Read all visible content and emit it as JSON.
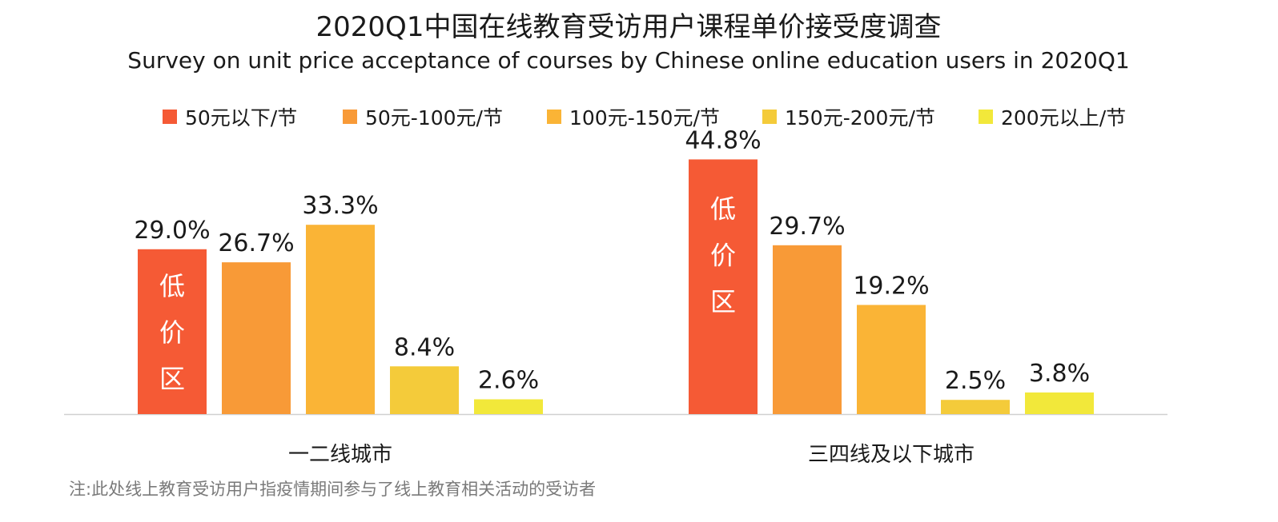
{
  "title": "2020Q1中国在线教育受访用户课程单价接受度调查",
  "subtitle": "Survey on unit price acceptance of courses by Chinese online education users in 2020Q1",
  "note": "注:此处线上教育受访用户指疫情期间参与了线上教育相关活动的受访者",
  "chart_data": {
    "type": "bar",
    "categories": [
      "一二线城市",
      "三四线及以下城市"
    ],
    "series": [
      {
        "name": "50元以下/节",
        "color": "#F55A35",
        "values": [
          29.0,
          44.8
        ],
        "labels": [
          "29.0%",
          "44.8%"
        ]
      },
      {
        "name": "50元-100元/节",
        "color": "#F89A37",
        "values": [
          26.7,
          29.7
        ],
        "labels": [
          "26.7%",
          "29.7%"
        ]
      },
      {
        "name": "100元-150元/节",
        "color": "#FAB436",
        "values": [
          33.3,
          19.2
        ],
        "labels": [
          "33.3%",
          "19.2%"
        ]
      },
      {
        "name": "150元-200元/节",
        "color": "#F4CB3A",
        "values": [
          8.4,
          2.5
        ],
        "labels": [
          "8.4%",
          "2.5%"
        ]
      },
      {
        "name": "200元以上/节",
        "color": "#F2E83A",
        "values": [
          2.6,
          3.8
        ],
        "labels": [
          "2.6%",
          "3.8%"
        ]
      }
    ],
    "annotations": [
      {
        "text": "低价区",
        "series": "50元以下/节",
        "category": "一二线城市"
      },
      {
        "text": "低价区",
        "series": "50元以下/节",
        "category": "三四线及以下城市"
      }
    ],
    "ylim": [
      0,
      45
    ],
    "legend": "top",
    "grid": false
  }
}
